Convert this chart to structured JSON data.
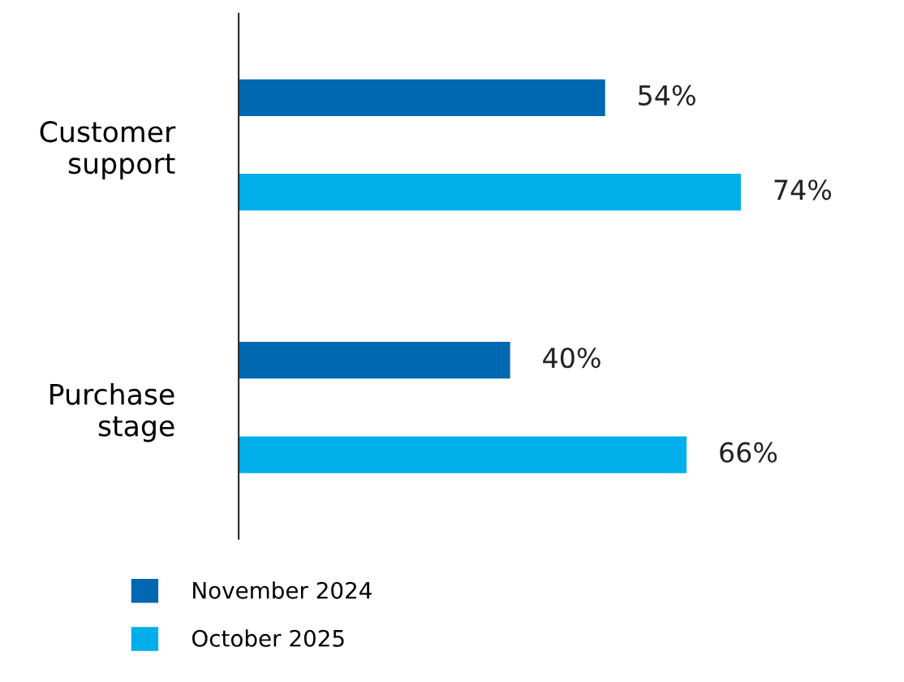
{
  "chart_data": {
    "type": "bar",
    "orientation": "horizontal",
    "categories": [
      "Customer support",
      "Purchase stage"
    ],
    "series": [
      {
        "name": "November 2024",
        "color": "#0067b1",
        "values": [
          54,
          40
        ],
        "value_labels": [
          "54%",
          "40%"
        ]
      },
      {
        "name": "October 2025",
        "color": "#00aeea",
        "values": [
          74,
          66
        ],
        "value_labels": [
          "74%",
          "66%"
        ]
      }
    ],
    "legend": "bottom left",
    "grid": false,
    "tick_labels": "y"
  }
}
